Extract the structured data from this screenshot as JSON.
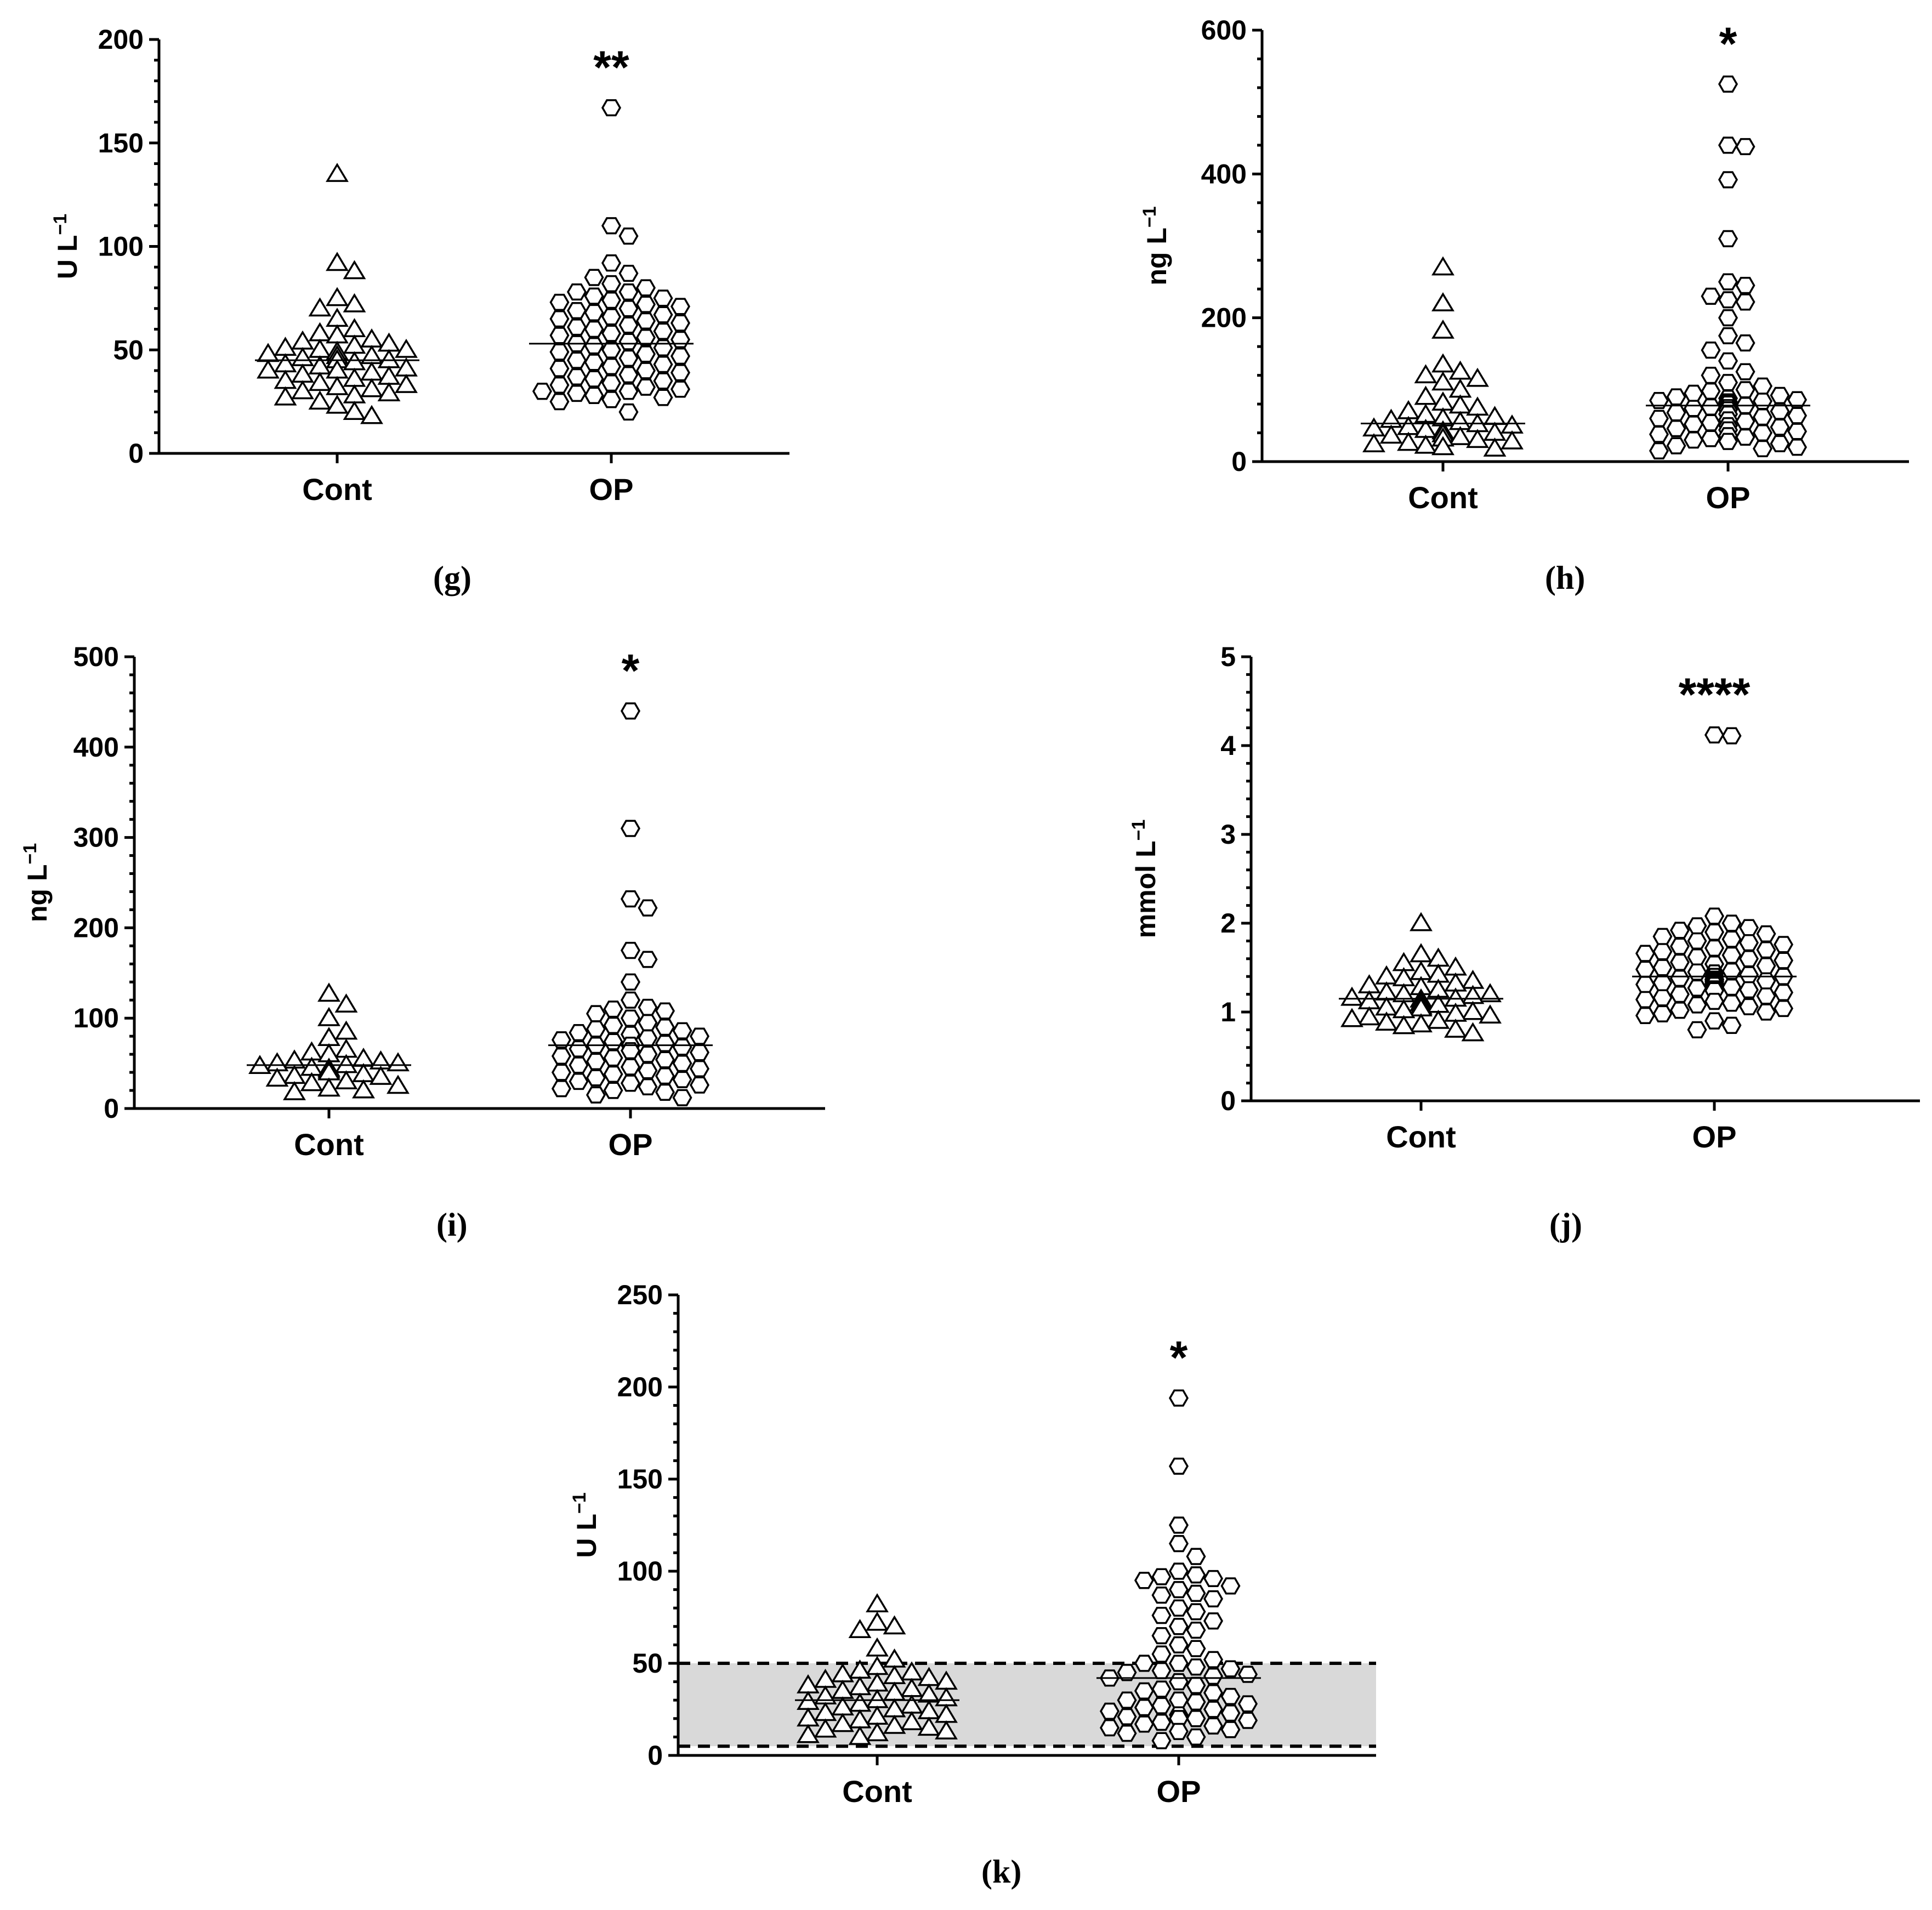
{
  "chart_data": [
    {
      "type": "scatter",
      "panel": "(g)",
      "caption": "(g)",
      "ylabel": "U L",
      "ylabel_sup": "−1",
      "ylim": [
        0,
        200
      ],
      "yticks": [
        0,
        50,
        100,
        150,
        200
      ],
      "categories": [
        "Cont",
        "OP"
      ],
      "significance": "**",
      "groups": [
        {
          "name": "Cont",
          "marker": "triangle",
          "median": 45,
          "values": [
            135,
            92,
            88,
            75,
            72,
            70,
            65,
            60,
            58,
            57,
            55,
            54,
            53,
            52,
            51,
            50,
            50,
            49,
            48,
            47,
            47,
            46,
            45,
            45,
            44,
            43,
            42,
            41,
            40,
            40,
            39,
            38,
            37,
            36,
            35,
            34,
            33,
            32,
            31,
            30,
            29,
            28,
            27,
            25,
            23,
            20,
            18
          ]
        },
        {
          "name": "OP",
          "marker": "hexagon",
          "median": 53,
          "values": [
            167,
            110,
            105,
            92,
            87,
            85,
            82,
            80,
            78,
            78,
            76,
            75,
            74,
            73,
            72,
            71,
            70,
            69,
            68,
            67,
            66,
            65,
            64,
            63,
            62,
            61,
            60,
            59,
            58,
            57,
            56,
            55,
            54,
            53,
            52,
            51,
            50,
            49,
            48,
            47,
            46,
            45,
            44,
            43,
            42,
            41,
            40,
            39,
            38,
            37,
            36,
            35,
            34,
            33,
            32,
            31,
            30,
            30,
            29,
            28,
            27,
            26,
            25,
            20
          ]
        }
      ]
    },
    {
      "type": "scatter",
      "panel": "(h)",
      "caption": "(h)",
      "ylabel": "ng L",
      "ylabel_sup": "−1",
      "ylim": [
        0,
        600
      ],
      "yticks": [
        0,
        200,
        400,
        600
      ],
      "categories": [
        "Cont",
        "OP"
      ],
      "significance": "*",
      "groups": [
        {
          "name": "Cont",
          "marker": "triangle",
          "median": 53,
          "values": [
            270,
            220,
            182,
            135,
            125,
            120,
            115,
            110,
            100,
            90,
            82,
            78,
            75,
            70,
            65,
            62,
            60,
            58,
            55,
            52,
            50,
            48,
            46,
            44,
            42,
            40,
            38,
            36,
            34,
            32,
            30,
            28,
            26,
            24,
            22,
            20,
            18
          ]
        },
        {
          "name": "OP",
          "marker": "hexagon",
          "median": 78,
          "values": [
            525,
            440,
            438,
            392,
            310,
            250,
            245,
            230,
            225,
            222,
            200,
            175,
            165,
            155,
            140,
            125,
            120,
            110,
            105,
            100,
            98,
            95,
            92,
            90,
            88,
            86,
            85,
            84,
            83,
            82,
            80,
            78,
            76,
            75,
            74,
            72,
            70,
            68,
            66,
            64,
            62,
            60,
            58,
            56,
            54,
            52,
            50,
            48,
            46,
            44,
            42,
            40,
            38,
            36,
            34,
            32,
            30,
            28,
            25,
            22,
            20,
            18,
            15
          ]
        }
      ]
    },
    {
      "type": "scatter",
      "panel": "(i)",
      "caption": "(i)",
      "ylabel": "ng L",
      "ylabel_sup": "−1",
      "ylim": [
        0,
        500
      ],
      "yticks": [
        0,
        100,
        200,
        300,
        400,
        500
      ],
      "categories": [
        "Cont",
        "OP"
      ],
      "significance": "*",
      "groups": [
        {
          "name": "Cont",
          "marker": "triangle",
          "median": 48,
          "values": [
            127,
            115,
            100,
            85,
            78,
            65,
            62,
            60,
            55,
            53,
            52,
            50,
            50,
            48,
            47,
            45,
            44,
            42,
            40,
            38,
            36,
            35,
            33,
            30,
            28,
            25,
            22,
            20,
            18
          ]
        },
        {
          "name": "OP",
          "marker": "hexagon",
          "median": 70,
          "values": [
            440,
            310,
            232,
            222,
            175,
            165,
            140,
            120,
            112,
            110,
            108,
            105,
            100,
            95,
            92,
            90,
            88,
            86,
            84,
            82,
            80,
            78,
            76,
            74,
            72,
            70,
            70,
            68,
            66,
            64,
            62,
            60,
            58,
            56,
            54,
            52,
            50,
            48,
            46,
            44,
            42,
            40,
            38,
            36,
            34,
            32,
            30,
            28,
            26,
            24,
            22,
            20,
            18,
            15,
            12
          ]
        }
      ]
    },
    {
      "type": "scatter",
      "panel": "(j)",
      "caption": "(j)",
      "ylabel": "mmol L",
      "ylabel_sup": "−1",
      "ylim": [
        0,
        5
      ],
      "yticks": [
        0,
        1,
        2,
        3,
        4,
        5
      ],
      "categories": [
        "Cont",
        "OP"
      ],
      "significance": "****",
      "groups": [
        {
          "name": "Cont",
          "marker": "triangle",
          "median": 1.15,
          "values": [
            2.0,
            1.65,
            1.6,
            1.55,
            1.5,
            1.45,
            1.42,
            1.4,
            1.38,
            1.35,
            1.32,
            1.3,
            1.28,
            1.25,
            1.22,
            1.2,
            1.2,
            1.18,
            1.16,
            1.15,
            1.14,
            1.12,
            1.1,
            1.1,
            1.08,
            1.06,
            1.05,
            1.04,
            1.02,
            1.0,
            0.98,
            0.96,
            0.94,
            0.92,
            0.9,
            0.88,
            0.86,
            0.84,
            0.8,
            0.76
          ]
        },
        {
          "name": "OP",
          "marker": "hexagon",
          "median": 1.4,
          "values": [
            4.12,
            4.11,
            2.08,
            2.0,
            1.97,
            1.95,
            1.92,
            1.9,
            1.88,
            1.85,
            1.82,
            1.8,
            1.78,
            1.76,
            1.74,
            1.72,
            1.7,
            1.68,
            1.66,
            1.64,
            1.62,
            1.6,
            1.58,
            1.56,
            1.54,
            1.52,
            1.5,
            1.48,
            1.46,
            1.45,
            1.44,
            1.42,
            1.4,
            1.4,
            1.38,
            1.37,
            1.36,
            1.35,
            1.34,
            1.33,
            1.32,
            1.31,
            1.3,
            1.3,
            1.28,
            1.27,
            1.26,
            1.25,
            1.24,
            1.22,
            1.2,
            1.18,
            1.16,
            1.14,
            1.12,
            1.1,
            1.08,
            1.06,
            1.04,
            1.02,
            1.0,
            0.98,
            0.96,
            0.9,
            0.85,
            0.8
          ]
        }
      ]
    },
    {
      "type": "scatter",
      "panel": "(k)",
      "caption": "(k)",
      "ylabel": "U L",
      "ylabel_sup": "−1",
      "ylim": [
        0,
        250
      ],
      "yticks": [
        0,
        50,
        100,
        150,
        200,
        250
      ],
      "categories": [
        "Cont",
        "OP"
      ],
      "significance": "*",
      "reference_band": [
        5,
        50
      ],
      "groups": [
        {
          "name": "Cont",
          "marker": "triangle",
          "median": 30,
          "values": [
            82,
            72,
            70,
            68,
            58,
            52,
            48,
            46,
            45,
            44,
            43,
            42,
            41,
            40,
            39,
            38,
            37,
            36,
            35,
            34,
            33,
            32,
            31,
            30,
            29,
            28,
            27,
            26,
            25,
            24,
            23,
            22,
            21,
            20,
            19,
            18,
            17,
            16,
            15,
            14,
            13,
            12,
            11,
            10
          ]
        },
        {
          "name": "OP",
          "marker": "hexagon",
          "median": 42,
          "values": [
            194,
            157,
            125,
            115,
            108,
            100,
            98,
            97,
            96,
            95,
            92,
            90,
            88,
            87,
            85,
            80,
            78,
            76,
            73,
            70,
            68,
            65,
            60,
            58,
            55,
            52,
            50,
            50,
            48,
            47,
            46,
            45,
            44,
            43,
            42,
            40,
            38,
            36,
            35,
            34,
            32,
            30,
            30,
            29,
            28,
            27,
            26,
            25,
            24,
            23,
            22,
            21,
            20,
            20,
            19,
            18,
            17,
            16,
            15,
            14,
            13,
            12,
            10,
            8
          ]
        }
      ]
    }
  ]
}
